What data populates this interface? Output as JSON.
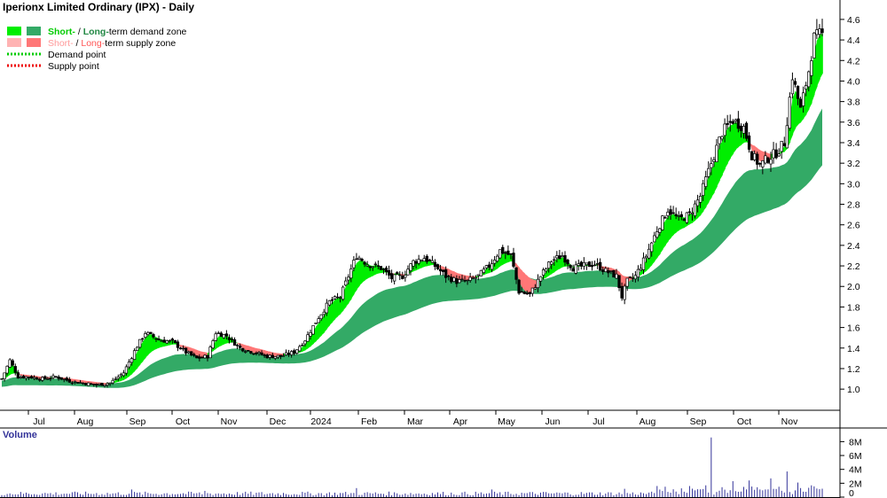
{
  "chart_data": {
    "type": "candlestick",
    "title": "Iperionx Limited Ordinary (IPX) - Daily",
    "legend": [
      {
        "label_a": "Short-",
        "sep": " / ",
        "label_b": "Long-",
        "rest": "term demand zone",
        "colors": [
          "#00ee00",
          "#33aa66"
        ],
        "text_colors": [
          "#00cc00",
          "#228844"
        ]
      },
      {
        "label_a": "Short-",
        "sep": " / ",
        "label_b": "Long-",
        "rest": "term supply zone",
        "colors": [
          "#ffb3b3",
          "#ff7777"
        ],
        "text_colors": [
          "#ff9999",
          "#ff5555"
        ]
      },
      {
        "label": "Demand point",
        "color": "#00cc00"
      },
      {
        "label": "Supply point",
        "color": "#ee0000"
      }
    ],
    "y_ticks": [
      "1.0",
      "1.2",
      "1.4",
      "1.6",
      "1.8",
      "2.0",
      "2.2",
      "2.4",
      "2.6",
      "2.8",
      "3.0",
      "3.2",
      "3.4",
      "3.6",
      "3.8",
      "4.0",
      "4.2",
      "4.4",
      "4.6"
    ],
    "ylim": [
      0.82,
      4.72
    ],
    "x_ticks": [
      "Jul",
      "Aug",
      "Sep",
      "Oct",
      "Nov",
      "Dec",
      "2024",
      "Feb",
      "Mar",
      "Apr",
      "May",
      "Jun",
      "Jul",
      "Aug",
      "Sep",
      "Oct",
      "Nov"
    ],
    "price_anchors": [
      [
        0,
        1.1
      ],
      [
        3,
        1.28
      ],
      [
        6,
        1.12
      ],
      [
        10,
        1.12
      ],
      [
        15,
        1.1
      ],
      [
        20,
        1.12
      ],
      [
        25,
        1.08
      ],
      [
        30,
        1.06
      ],
      [
        35,
        1.04
      ],
      [
        40,
        1.06
      ],
      [
        45,
        1.16
      ],
      [
        50,
        1.42
      ],
      [
        53,
        1.55
      ],
      [
        58,
        1.48
      ],
      [
        63,
        1.46
      ],
      [
        68,
        1.36
      ],
      [
        72,
        1.3
      ],
      [
        76,
        1.32
      ],
      [
        79,
        1.55
      ],
      [
        83,
        1.52
      ],
      [
        88,
        1.4
      ],
      [
        93,
        1.36
      ],
      [
        98,
        1.32
      ],
      [
        103,
        1.32
      ],
      [
        108,
        1.36
      ],
      [
        112,
        1.48
      ],
      [
        117,
        1.7
      ],
      [
        121,
        1.85
      ],
      [
        125,
        1.9
      ],
      [
        128,
        2.1
      ],
      [
        131,
        2.3
      ],
      [
        135,
        2.22
      ],
      [
        140,
        2.18
      ],
      [
        144,
        2.08
      ],
      [
        148,
        2.1
      ],
      [
        152,
        2.24
      ],
      [
        156,
        2.28
      ],
      [
        160,
        2.2
      ],
      [
        164,
        2.1
      ],
      [
        168,
        2.05
      ],
      [
        172,
        2.05
      ],
      [
        176,
        2.1
      ],
      [
        180,
        2.2
      ],
      [
        184,
        2.35
      ],
      [
        188,
        2.3
      ],
      [
        191,
        1.95
      ],
      [
        195,
        1.92
      ],
      [
        199,
        2.1
      ],
      [
        203,
        2.25
      ],
      [
        207,
        2.3
      ],
      [
        211,
        2.18
      ],
      [
        215,
        2.2
      ],
      [
        219,
        2.22
      ],
      [
        223,
        2.15
      ],
      [
        227,
        2.1
      ],
      [
        229,
        1.9
      ],
      [
        231,
        2.05
      ],
      [
        234,
        2.1
      ],
      [
        238,
        2.3
      ],
      [
        242,
        2.55
      ],
      [
        246,
        2.75
      ],
      [
        250,
        2.65
      ],
      [
        254,
        2.7
      ],
      [
        258,
        2.88
      ],
      [
        262,
        3.2
      ],
      [
        266,
        3.5
      ],
      [
        270,
        3.62
      ],
      [
        274,
        3.55
      ],
      [
        277,
        3.28
      ],
      [
        280,
        3.18
      ],
      [
        283,
        3.25
      ],
      [
        286,
        3.3
      ],
      [
        289,
        3.4
      ],
      [
        292,
        4.05
      ],
      [
        295,
        3.72
      ],
      [
        298,
        4.1
      ],
      [
        300,
        4.42
      ],
      [
        302,
        4.45
      ]
    ],
    "volume_label": "Volume",
    "volume_ticks": [
      "0",
      "2M",
      "4M",
      "6M",
      "8M"
    ],
    "volume_ylim": [
      0,
      9.2
    ],
    "volume_spikes": [
      [
        48,
        1.1
      ],
      [
        75,
        0.9
      ],
      [
        131,
        1.3
      ],
      [
        181,
        1.1
      ],
      [
        230,
        1.2
      ],
      [
        245,
        1.5
      ],
      [
        254,
        1.6
      ],
      [
        260,
        1.7
      ],
      [
        262,
        8.6
      ],
      [
        270,
        2.3
      ],
      [
        276,
        2.4
      ],
      [
        284,
        2.7
      ],
      [
        290,
        3.7
      ],
      [
        294,
        2.1
      ],
      [
        299,
        1.7
      ]
    ]
  },
  "colors": {
    "short_demand": "#00ee00",
    "long_demand": "#33aa66",
    "short_supply": "#ffb3b3",
    "long_supply": "#ff7777",
    "volume_bar": "#333399"
  }
}
